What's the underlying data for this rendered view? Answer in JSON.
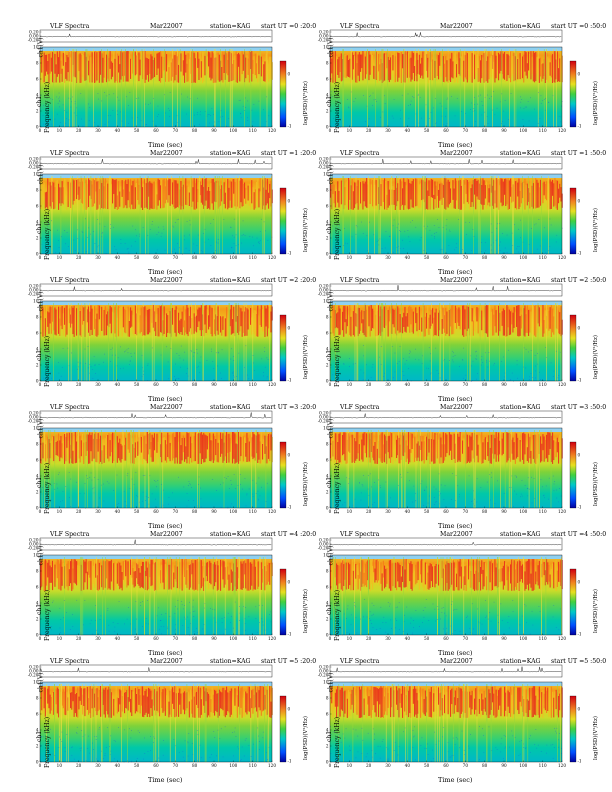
{
  "header": {
    "title": "VLF Spectra",
    "date": "Mar22007",
    "station": "station=KAG",
    "start_prefix": "start  UT ="
  },
  "labels": {
    "timeseries_ylabel": "ch1(V)",
    "channel": "ch1",
    "frequency_ylabel": "Frequency (kHz)",
    "colorbar_label": "log(PSD)(V²/Hz)",
    "xlabel": "Time (sec)"
  },
  "colors": {
    "background_band": "#8fd0f0",
    "ts_line": "#000000"
  },
  "chart_data": [
    {
      "type": "heatmap",
      "start": "0 :20:0",
      "x_range": [
        0,
        120
      ],
      "y_range": [
        0,
        10
      ],
      "x_ticks": [
        0,
        10,
        20,
        30,
        40,
        50,
        60,
        70,
        80,
        90,
        100,
        110,
        120
      ],
      "y_ticks": [
        0,
        2,
        4,
        6,
        8,
        10
      ],
      "ts_ticks": [
        "0.20",
        "0.00",
        "-0.20"
      ],
      "colorbar_ticks": [
        "0",
        "-1"
      ],
      "emission_band_khz": [
        5.5,
        9.5
      ]
    },
    {
      "type": "heatmap",
      "start": "0 :50:0",
      "x_range": [
        0,
        120
      ],
      "y_range": [
        0,
        10
      ],
      "x_ticks": [
        0,
        10,
        20,
        30,
        40,
        50,
        60,
        70,
        80,
        90,
        100,
        110,
        120
      ],
      "y_ticks": [
        0,
        2,
        4,
        6,
        8,
        10
      ],
      "ts_ticks": [
        "0.20",
        "0.00",
        "-0.20"
      ],
      "colorbar_ticks": [
        "0",
        "-1"
      ],
      "emission_band_khz": [
        5.5,
        9.5
      ]
    },
    {
      "type": "heatmap",
      "start": "1 :20:0",
      "x_range": [
        0,
        120
      ],
      "y_range": [
        0,
        10
      ],
      "x_ticks": [
        0,
        10,
        20,
        30,
        40,
        50,
        60,
        70,
        80,
        90,
        100,
        110,
        120
      ],
      "y_ticks": [
        0,
        2,
        4,
        6,
        8,
        10
      ],
      "ts_ticks": [
        "0.20",
        "0.00",
        "-0.20"
      ],
      "colorbar_ticks": [
        "0",
        "-1"
      ],
      "emission_band_khz": [
        5.5,
        9.5
      ]
    },
    {
      "type": "heatmap",
      "start": "1 :50:0",
      "x_range": [
        0,
        120
      ],
      "y_range": [
        0,
        10
      ],
      "x_ticks": [
        0,
        10,
        20,
        30,
        40,
        50,
        60,
        70,
        80,
        90,
        100,
        110,
        120
      ],
      "y_ticks": [
        0,
        2,
        4,
        6,
        8,
        10
      ],
      "ts_ticks": [
        "0.20",
        "0.00",
        "-0.20"
      ],
      "colorbar_ticks": [
        "0",
        "-1"
      ],
      "emission_band_khz": [
        5.5,
        9.5
      ]
    },
    {
      "type": "heatmap",
      "start": "2 :20:0",
      "x_range": [
        0,
        120
      ],
      "y_range": [
        0,
        10
      ],
      "x_ticks": [
        0,
        10,
        20,
        30,
        40,
        50,
        60,
        70,
        80,
        90,
        100,
        110,
        120
      ],
      "y_ticks": [
        0,
        2,
        4,
        6,
        8,
        10
      ],
      "ts_ticks": [
        "0.20",
        "0.00",
        "-0.20"
      ],
      "colorbar_ticks": [
        "0",
        "-1"
      ],
      "emission_band_khz": [
        5.5,
        9.5
      ]
    },
    {
      "type": "heatmap",
      "start": "2 :50:0",
      "x_range": [
        0,
        120
      ],
      "y_range": [
        0,
        10
      ],
      "x_ticks": [
        0,
        10,
        20,
        30,
        40,
        50,
        60,
        70,
        80,
        90,
        100,
        110,
        120
      ],
      "y_ticks": [
        0,
        2,
        4,
        6,
        8,
        10
      ],
      "ts_ticks": [
        "0.20",
        "0.00",
        "-0.20"
      ],
      "colorbar_ticks": [
        "0",
        "-1"
      ],
      "emission_band_khz": [
        5.5,
        9.5
      ]
    },
    {
      "type": "heatmap",
      "start": "3 :20:0",
      "x_range": [
        0,
        120
      ],
      "y_range": [
        0,
        10
      ],
      "x_ticks": [
        0,
        10,
        20,
        30,
        40,
        50,
        60,
        70,
        80,
        90,
        100,
        110,
        120
      ],
      "y_ticks": [
        0,
        2,
        4,
        6,
        8,
        10
      ],
      "ts_ticks": [
        "0.20",
        "0.00",
        "-0.20"
      ],
      "colorbar_ticks": [
        "0",
        "-1"
      ],
      "emission_band_khz": [
        5.5,
        9.5
      ]
    },
    {
      "type": "heatmap",
      "start": "3 :50:0",
      "x_range": [
        0,
        120
      ],
      "y_range": [
        0,
        10
      ],
      "x_ticks": [
        0,
        10,
        20,
        30,
        40,
        50,
        60,
        70,
        80,
        90,
        100,
        110,
        120
      ],
      "y_ticks": [
        0,
        2,
        4,
        6,
        8,
        10
      ],
      "ts_ticks": [
        "0.20",
        "0.00",
        "-0.20"
      ],
      "colorbar_ticks": [
        "0",
        "-1"
      ],
      "emission_band_khz": [
        5.5,
        9.5
      ]
    },
    {
      "type": "heatmap",
      "start": "4 :20:0",
      "x_range": [
        0,
        120
      ],
      "y_range": [
        0,
        10
      ],
      "x_ticks": [
        0,
        10,
        20,
        30,
        40,
        50,
        60,
        70,
        80,
        90,
        100,
        110,
        120
      ],
      "y_ticks": [
        0,
        2,
        4,
        6,
        8,
        10
      ],
      "ts_ticks": [
        "0.20",
        "0.00",
        "-0.20"
      ],
      "colorbar_ticks": [
        "0",
        "-1"
      ],
      "emission_band_khz": [
        5.5,
        9.5
      ]
    },
    {
      "type": "heatmap",
      "start": "4 :50:0",
      "x_range": [
        0,
        120
      ],
      "y_range": [
        0,
        10
      ],
      "x_ticks": [
        0,
        10,
        20,
        30,
        40,
        50,
        60,
        70,
        80,
        90,
        100,
        110,
        120
      ],
      "y_ticks": [
        0,
        2,
        4,
        6,
        8,
        10
      ],
      "ts_ticks": [
        "0.20",
        "0.00",
        "-0.20"
      ],
      "colorbar_ticks": [
        "0",
        "-1"
      ],
      "emission_band_khz": [
        5.5,
        9.5
      ]
    },
    {
      "type": "heatmap",
      "start": "5 :20:0",
      "x_range": [
        0,
        120
      ],
      "y_range": [
        0,
        10
      ],
      "x_ticks": [
        0,
        10,
        20,
        30,
        40,
        50,
        60,
        70,
        80,
        90,
        100,
        110,
        120
      ],
      "y_ticks": [
        0,
        2,
        4,
        6,
        8,
        10
      ],
      "ts_ticks": [
        "0.20",
        "0.00",
        "-0.20"
      ],
      "colorbar_ticks": [
        "0",
        "-1"
      ],
      "emission_band_khz": [
        5.5,
        9.5
      ]
    },
    {
      "type": "heatmap",
      "start": "5 :50:0",
      "x_range": [
        0,
        120
      ],
      "y_range": [
        0,
        10
      ],
      "x_ticks": [
        0,
        10,
        20,
        30,
        40,
        50,
        60,
        70,
        80,
        90,
        100,
        110,
        120
      ],
      "y_ticks": [
        0,
        2,
        4,
        6,
        8,
        10
      ],
      "ts_ticks": [
        "0.20",
        "0.00",
        "-0.20"
      ],
      "colorbar_ticks": [
        "0",
        "-1"
      ],
      "emission_band_khz": [
        5.5,
        9.5
      ]
    }
  ]
}
